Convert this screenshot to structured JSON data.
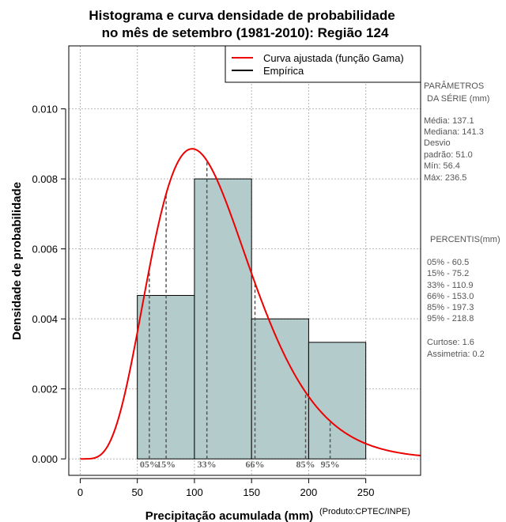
{
  "chart_data": {
    "type": "bar",
    "title_line1": "Histograma e curva densidade de probabilidade",
    "title_line2": "no mês de setembro (1981-2010): Região 124",
    "xlabel": "Precipitação acumulada (mm)",
    "ylabel": "Densidade de probabilidade",
    "credit": "(Produto:CPTEC/INPE)",
    "xlim": [
      -10,
      298
    ],
    "ylim": [
      -0.00047,
      0.0118
    ],
    "x_ticks": [
      0,
      50,
      100,
      150,
      200,
      250
    ],
    "x_tick_labels": [
      "0",
      "50",
      "100",
      "150",
      "200",
      "250"
    ],
    "y_ticks": [
      0.0,
      0.002,
      0.004,
      0.006,
      0.008,
      0.01
    ],
    "y_tick_labels": [
      "0.000",
      "0.002",
      "0.004",
      "0.006",
      "0.008",
      "0.010"
    ],
    "grid": true,
    "histogram": {
      "name": "Empírica",
      "bins": [
        {
          "from": 50,
          "to": 100,
          "density": 0.00467
        },
        {
          "from": 100,
          "to": 150,
          "density": 0.008
        },
        {
          "from": 150,
          "to": 200,
          "density": 0.004
        },
        {
          "from": 200,
          "to": 250,
          "density": 0.00333
        }
      ],
      "fill_color": "#b3cccb",
      "edge_color": "#000000"
    },
    "fitted_curve": {
      "name": "Curva ajustada (função Gama)",
      "distribution": "gamma",
      "shape": 5.9,
      "scale": 20.0,
      "color": "#ee0000"
    },
    "percentile_markers": [
      {
        "label": "05%",
        "value": 60.5
      },
      {
        "label": "15%",
        "value": 75.2
      },
      {
        "label": "33%",
        "value": 110.9
      },
      {
        "label": "66%",
        "value": 153.0
      },
      {
        "label": "85%",
        "value": 197.3
      },
      {
        "label": "95%",
        "value": 218.8
      }
    ],
    "legend": {
      "position": "top-right",
      "entries": [
        "Curva ajustada (função Gama)",
        "Empírica"
      ]
    }
  },
  "side_panel": {
    "params_title1": "PARÂMETROS",
    "params_title2": "DA SÉRIE (mm)",
    "media": "Média:  137.1",
    "mediana": "Mediana:  141.3",
    "desvio1": "Desvio",
    "desvio2": "padrão:  51.0",
    "min": "Mín:  56.4",
    "max": "Máx:  236.5",
    "percentis_title": "PERCENTIS(mm)",
    "p05": "05% -  60.5",
    "p15": "15% -  75.2",
    "p33": "33% -  110.9",
    "p66": "66% -  153.0",
    "p85": "85% -  197.3",
    "p95": "95% -  218.8",
    "curtose": "Curtose:  1.6",
    "assimetria": "Assimetria:  0.2"
  }
}
